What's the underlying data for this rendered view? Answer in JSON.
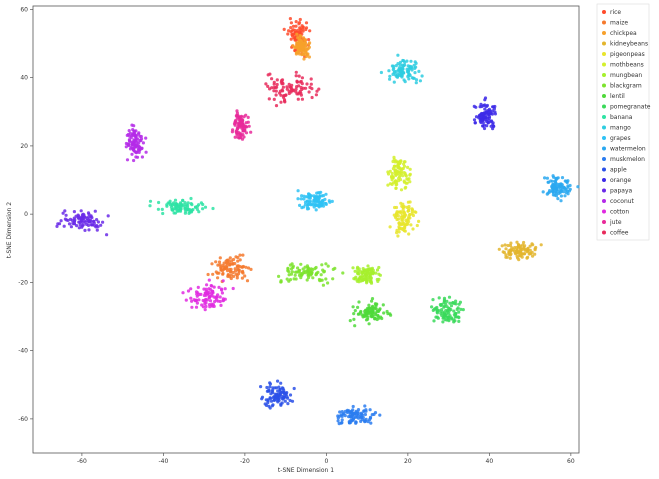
{
  "chart_data": {
    "type": "scatter",
    "title": "",
    "xlabel": "t-SNE Dimension 1",
    "ylabel": "t-SNE Dimension 2",
    "xlim": [
      -72,
      62
    ],
    "ylim": [
      -70,
      61
    ],
    "xticks": [
      "-60",
      "-40",
      "-20",
      "0",
      "20",
      "40",
      "60"
    ],
    "xtick_values": [
      -60,
      -40,
      -20,
      0,
      20,
      40,
      60
    ],
    "yticks": [
      "60",
      "40",
      "20",
      "0",
      "-20",
      "-40",
      "-60"
    ],
    "ytick_values": [
      60,
      40,
      20,
      0,
      -20,
      -40,
      -60
    ],
    "grid": false,
    "legend_position": "outside-right",
    "series": [
      {
        "name": "rice",
        "color": "#ff4b2b",
        "center": [
          -7,
          52
        ],
        "spread": [
          2.2,
          4
        ]
      },
      {
        "name": "maize",
        "color": "#f5792d",
        "center": [
          -23,
          -16
        ],
        "spread": [
          4,
          2.8
        ]
      },
      {
        "name": "chickpea",
        "color": "#f7a12c",
        "center": [
          -6,
          49
        ],
        "spread": [
          1.5,
          2.5
        ]
      },
      {
        "name": "kidneybeans",
        "color": "#e3b52d",
        "center": [
          47,
          -11
        ],
        "spread": [
          4,
          2.2
        ]
      },
      {
        "name": "pigeonpeas",
        "color": "#e8e52d",
        "center": [
          19,
          -1
        ],
        "spread": [
          2.5,
          4
        ]
      },
      {
        "name": "mothbeans",
        "color": "#d4f02d",
        "center": [
          18,
          12
        ],
        "spread": [
          2,
          4.5
        ]
      },
      {
        "name": "mungbean",
        "color": "#a6f02d",
        "center": [
          10,
          -18
        ],
        "spread": [
          3,
          2.5
        ]
      },
      {
        "name": "blackgram",
        "color": "#7de32d",
        "center": [
          -5,
          -17
        ],
        "spread": [
          6,
          2.5
        ]
      },
      {
        "name": "lentil",
        "color": "#4fd93a",
        "center": [
          11,
          -29
        ],
        "spread": [
          4,
          2.5
        ]
      },
      {
        "name": "pomegranate",
        "color": "#3ad95a",
        "center": [
          30,
          -28
        ],
        "spread": [
          3,
          3
        ]
      },
      {
        "name": "banana",
        "color": "#2ee3a4",
        "center": [
          -36,
          2
        ],
        "spread": [
          5,
          1.8
        ]
      },
      {
        "name": "mango",
        "color": "#2ecde0",
        "center": [
          19,
          42
        ],
        "spread": [
          3.5,
          2.8
        ]
      },
      {
        "name": "grapes",
        "color": "#2ec2f5",
        "center": [
          -3,
          4
        ],
        "spread": [
          3.5,
          2.5
        ]
      },
      {
        "name": "watermelon",
        "color": "#2aa8f0",
        "center": [
          57,
          8
        ],
        "spread": [
          3,
          2.8
        ]
      },
      {
        "name": "muskmelon",
        "color": "#2a7cf0",
        "center": [
          7,
          -59
        ],
        "spread": [
          4,
          2.2
        ]
      },
      {
        "name": "apple",
        "color": "#2a50e8",
        "center": [
          -12,
          -53
        ],
        "spread": [
          3.5,
          3
        ]
      },
      {
        "name": "orange",
        "color": "#3d2ae8",
        "center": [
          39,
          29
        ],
        "spread": [
          2.2,
          3.5
        ]
      },
      {
        "name": "papaya",
        "color": "#6a2ae8",
        "center": [
          -60,
          -2
        ],
        "spread": [
          4.5,
          2.3
        ]
      },
      {
        "name": "coconut",
        "color": "#b42ae8",
        "center": [
          -47,
          21
        ],
        "spread": [
          1.6,
          4
        ]
      },
      {
        "name": "cotton",
        "color": "#e02ae0",
        "center": [
          -29,
          -24
        ],
        "spread": [
          4,
          3
        ]
      },
      {
        "name": "jute",
        "color": "#e82a9a",
        "center": [
          -21,
          26
        ],
        "spread": [
          1.8,
          4
        ]
      },
      {
        "name": "coffee",
        "color": "#e82a5a",
        "center": [
          -9,
          37
        ],
        "spread": [
          5,
          3.5
        ]
      }
    ]
  }
}
